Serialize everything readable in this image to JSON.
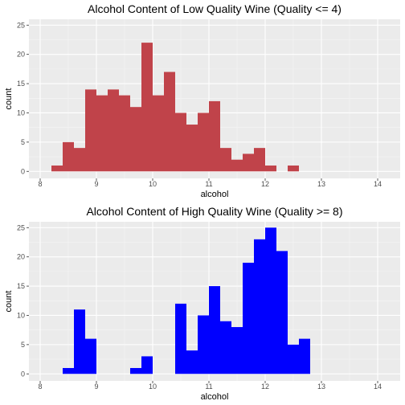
{
  "chart_data": [
    {
      "type": "bar",
      "title": "Alcohol Content of Low Quality Wine (Quality <= 4)",
      "xlabel": "alcohol",
      "ylabel": "count",
      "xlim": [
        7.8,
        14.4
      ],
      "ylim": [
        -1.2,
        26
      ],
      "x_ticks": [
        8,
        9,
        10,
        11,
        12,
        13,
        14
      ],
      "y_ticks": [
        0,
        5,
        10,
        15,
        20,
        25
      ],
      "bin_width": 0.2,
      "bin_starts": [
        8.2,
        8.4,
        8.6,
        8.8,
        9.0,
        9.2,
        9.4,
        9.6,
        9.8,
        10.0,
        10.2,
        10.4,
        10.6,
        10.8,
        11.0,
        11.2,
        11.4,
        11.6,
        11.8,
        12.0,
        12.2,
        12.4,
        12.6,
        12.8,
        13.0,
        13.2,
        13.4
      ],
      "values": [
        1,
        5,
        4,
        14,
        13,
        14,
        13,
        11,
        22,
        13,
        17,
        10,
        8,
        10,
        12,
        4,
        2,
        3,
        4,
        1,
        0,
        1,
        0,
        0,
        0,
        0,
        0
      ],
      "color": "#c0434a",
      "panel_background": "#ebebeb",
      "grid": true
    },
    {
      "type": "bar",
      "title": "Alcohol Content of High Quality Wine (Quality >= 8)",
      "xlabel": "alcohol",
      "ylabel": "count",
      "xlim": [
        7.8,
        14.4
      ],
      "ylim": [
        -1.2,
        26
      ],
      "x_ticks": [
        8,
        9,
        10,
        11,
        12,
        13,
        14
      ],
      "y_ticks": [
        0,
        5,
        10,
        15,
        20,
        25
      ],
      "bin_width": 0.2,
      "bin_starts": [
        8.4,
        8.6,
        8.8,
        9.0,
        9.2,
        9.4,
        9.6,
        9.8,
        10.0,
        10.2,
        10.4,
        10.6,
        10.8,
        11.0,
        11.2,
        11.4,
        11.6,
        11.8,
        12.0,
        12.2,
        12.4,
        12.6,
        12.8,
        13.0,
        13.2,
        13.4
      ],
      "values": [
        1,
        11,
        6,
        0,
        0,
        0,
        1,
        3,
        0,
        0,
        12,
        4,
        10,
        15,
        9,
        8,
        19,
        23,
        25,
        21,
        5,
        6,
        0,
        0,
        0,
        0
      ],
      "color": "#0000ff",
      "panel_background": "#ebebeb",
      "grid": true
    }
  ]
}
